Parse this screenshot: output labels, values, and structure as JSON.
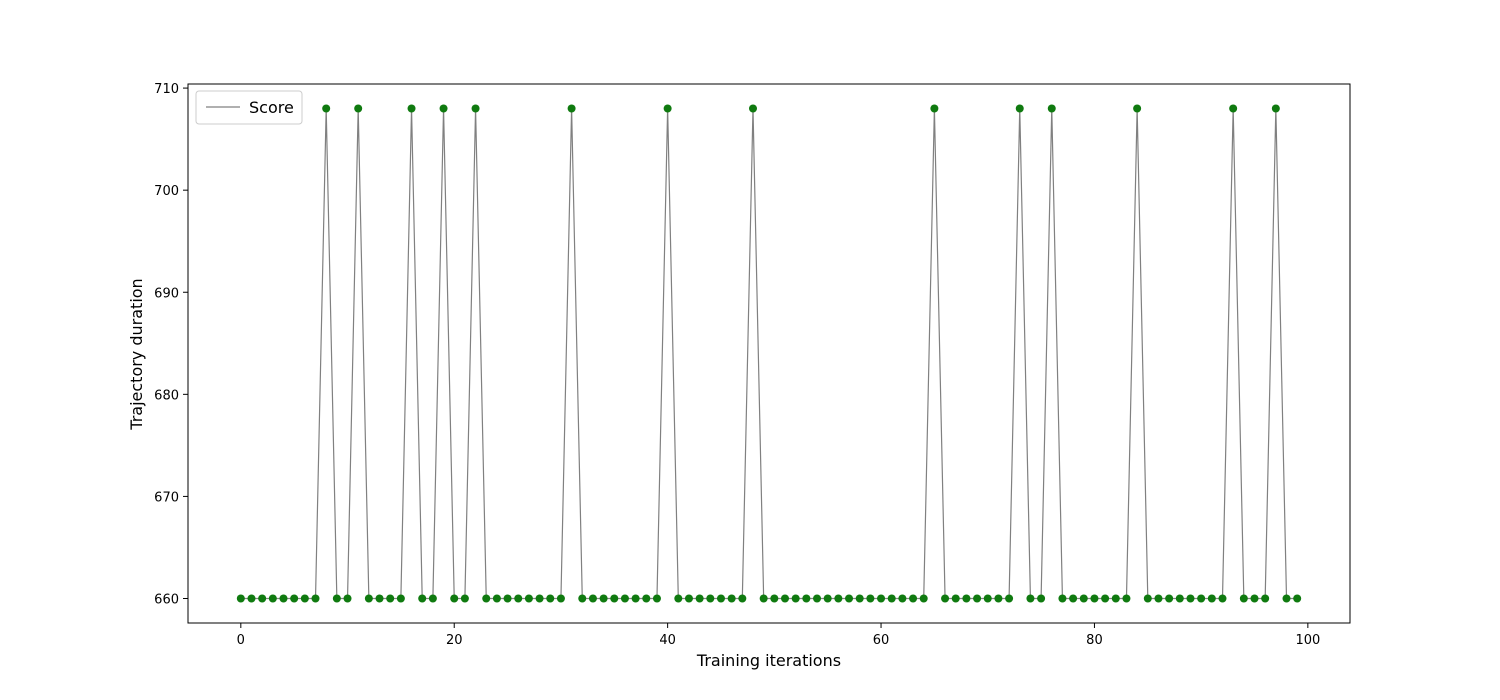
{
  "chart_data": {
    "type": "line",
    "title": "",
    "xlabel": "Training iterations",
    "ylabel": "Trajectory duration",
    "xlim": [
      -4.95,
      103.95
    ],
    "ylim": [
      657.6,
      710.4
    ],
    "xticks": [
      0,
      20,
      40,
      60,
      80,
      100
    ],
    "yticks": [
      660,
      670,
      680,
      690,
      700,
      710
    ],
    "grid": false,
    "legend": {
      "placement": "upper-left"
    },
    "series": [
      {
        "name": "Score",
        "line_color": "#808080",
        "marker_color": "#0f7a0f",
        "baseline": 660,
        "peak": 708,
        "peak_x": [
          8,
          11,
          16,
          19,
          22,
          31,
          40,
          48,
          65,
          73,
          76,
          84,
          93,
          97
        ],
        "x_range": [
          0,
          99
        ],
        "y": [
          660,
          660,
          660,
          660,
          660,
          660,
          660,
          660,
          708,
          660,
          660,
          708,
          660,
          660,
          660,
          660,
          708,
          660,
          660,
          708,
          660,
          660,
          708,
          660,
          660,
          660,
          660,
          660,
          660,
          660,
          660,
          708,
          660,
          660,
          660,
          660,
          660,
          660,
          660,
          660,
          708,
          660,
          660,
          660,
          660,
          660,
          660,
          660,
          708,
          660,
          660,
          660,
          660,
          660,
          660,
          660,
          660,
          660,
          660,
          660,
          660,
          660,
          660,
          660,
          660,
          708,
          660,
          660,
          660,
          660,
          660,
          660,
          660,
          708,
          660,
          660,
          708,
          660,
          660,
          660,
          660,
          660,
          660,
          660,
          708,
          660,
          660,
          660,
          660,
          660,
          660,
          660,
          660,
          708,
          660,
          660,
          660,
          708,
          660,
          660
        ]
      }
    ]
  }
}
